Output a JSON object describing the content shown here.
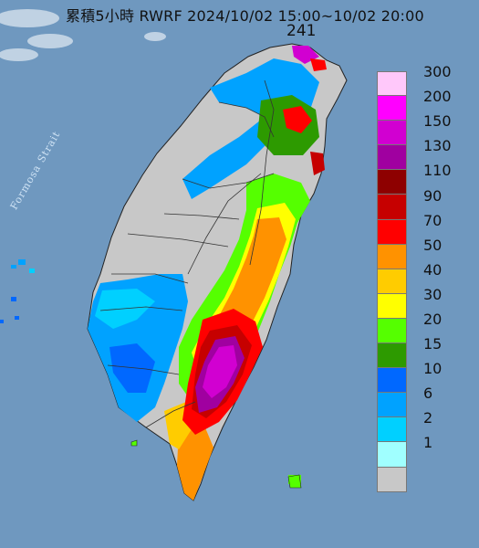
{
  "title": "累積5小時 RWRF 2024/10/02 15:00~10/02 20:00",
  "max_value": "241",
  "strait_label": "Formosa Strait",
  "legend": [
    {
      "label": "300",
      "color": "#ffc8fa"
    },
    {
      "label": "200",
      "color": "#ff00ff"
    },
    {
      "label": "150",
      "color": "#d100d1"
    },
    {
      "label": "130",
      "color": "#a000a0"
    },
    {
      "label": "110",
      "color": "#8e0000"
    },
    {
      "label": "90",
      "color": "#c60000"
    },
    {
      "label": "70",
      "color": "#ff0000"
    },
    {
      "label": "50",
      "color": "#ff9200"
    },
    {
      "label": "40",
      "color": "#ffcc00"
    },
    {
      "label": "30",
      "color": "#ffff00"
    },
    {
      "label": "20",
      "color": "#55ff00"
    },
    {
      "label": "15",
      "color": "#2d9a00"
    },
    {
      "label": "10",
      "color": "#0068ff"
    },
    {
      "label": "6",
      "color": "#00a2ff"
    },
    {
      "label": "2",
      "color": "#00d0ff"
    },
    {
      "label": "1",
      "color": "#a0ffff"
    },
    {
      "label": "",
      "color": "#c8c8c8"
    }
  ],
  "colors": {
    "sea": "#6f98bf",
    "land_no_rain": "#c8c8c8"
  }
}
